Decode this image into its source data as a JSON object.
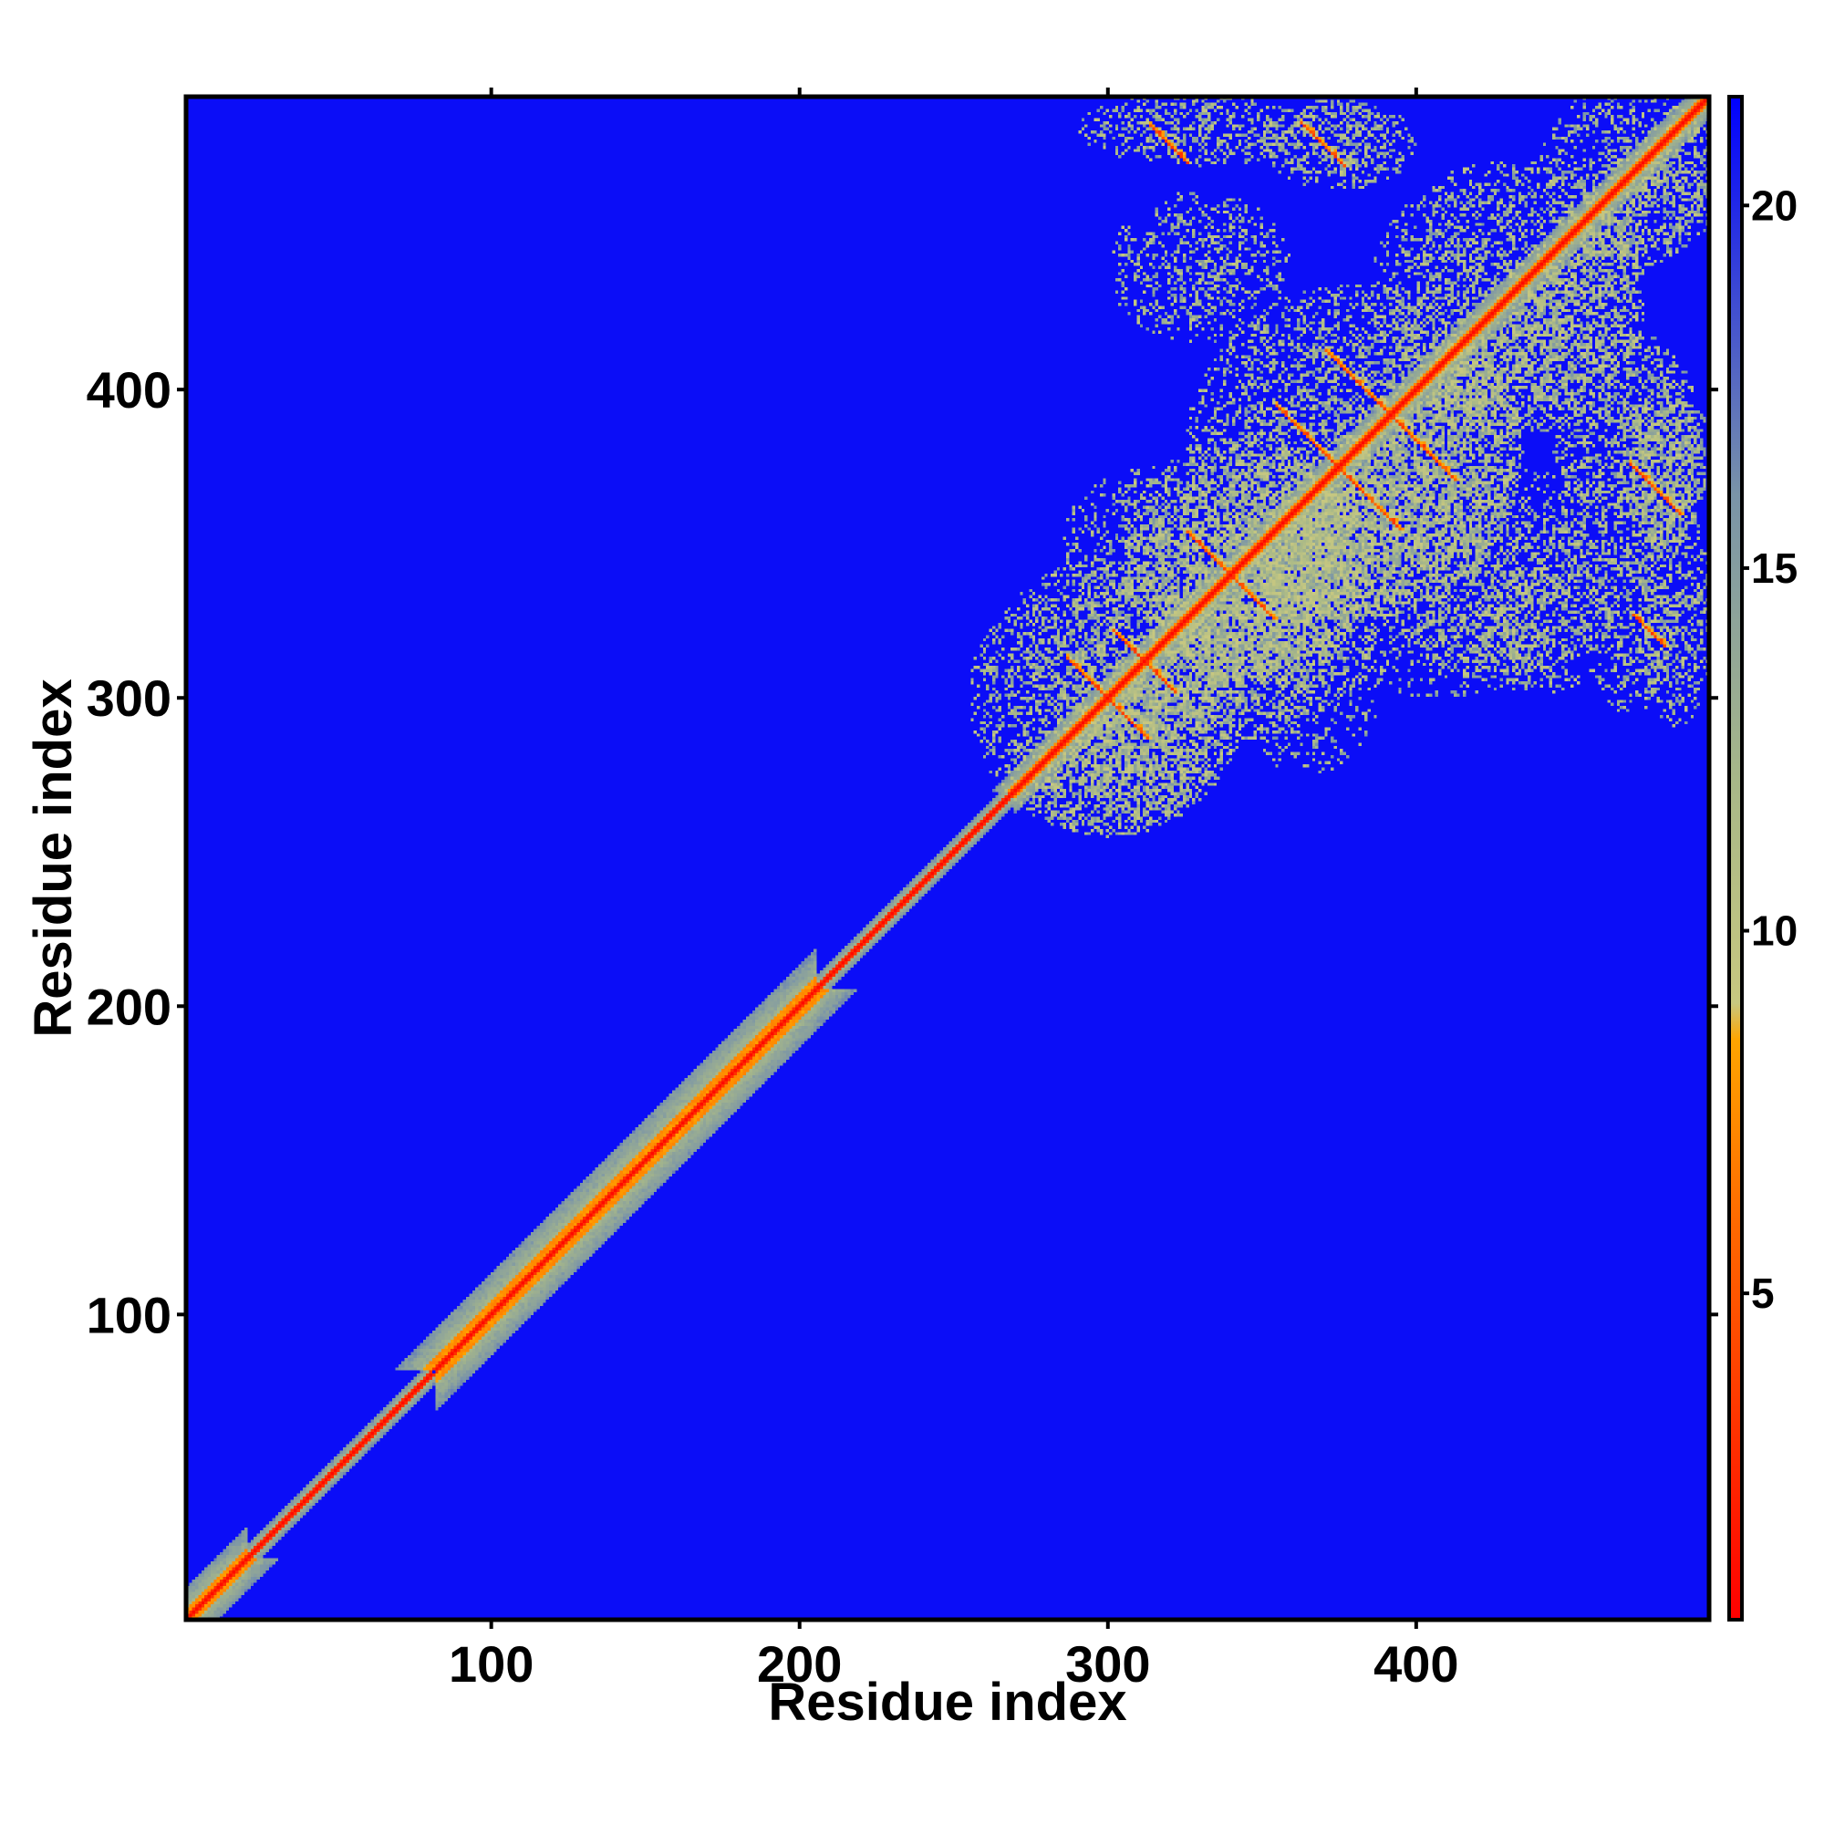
{
  "chart_data": {
    "type": "heatmap",
    "title": "",
    "xlabel": "Residue index",
    "ylabel": "Residue index",
    "xlim": [
      1,
      495
    ],
    "ylim": [
      1,
      495
    ],
    "x_ticks": [
      100,
      200,
      300,
      400
    ],
    "y_ticks": [
      100,
      200,
      300,
      400
    ],
    "colorbar": {
      "range": [
        0.5,
        21.5
      ],
      "ticks": [
        5,
        10,
        15,
        20
      ],
      "stops": [
        {
          "value": 0.5,
          "color": "#ff0000"
        },
        {
          "value": 6.0,
          "color": "#ff6a00"
        },
        {
          "value": 8.5,
          "color": "#ffa500"
        },
        {
          "value": 9.0,
          "color": "#c8c880"
        },
        {
          "value": 12.0,
          "color": "#a8b888"
        },
        {
          "value": 16.0,
          "color": "#7a94a8"
        },
        {
          "value": 21.5,
          "color": "#0000ff"
        }
      ]
    },
    "background_value": 21,
    "diagonal_bands": [
      {
        "start": 1,
        "end": 20,
        "half_width": 10
      },
      {
        "start": 20,
        "end": 80,
        "half_width": 4
      },
      {
        "start": 82,
        "end": 205,
        "half_width": 13
      },
      {
        "start": 205,
        "end": 270,
        "half_width": 4
      },
      {
        "start": 270,
        "end": 495,
        "half_width": 7
      }
    ],
    "contact_clusters": [
      {
        "x": 300,
        "y": 300,
        "rx": 45,
        "ry": 45,
        "density": 0.55
      },
      {
        "x": 345,
        "y": 345,
        "rx": 40,
        "ry": 40,
        "density": 0.5
      },
      {
        "x": 380,
        "y": 380,
        "rx": 55,
        "ry": 55,
        "density": 0.5
      },
      {
        "x": 430,
        "y": 430,
        "rx": 45,
        "ry": 45,
        "density": 0.45
      },
      {
        "x": 470,
        "y": 470,
        "rx": 30,
        "ry": 30,
        "density": 0.4
      },
      {
        "x": 330,
        "y": 485,
        "rx": 40,
        "ry": 12,
        "density": 0.4
      },
      {
        "x": 375,
        "y": 480,
        "rx": 25,
        "ry": 15,
        "density": 0.5
      },
      {
        "x": 315,
        "y": 350,
        "rx": 30,
        "ry": 25,
        "density": 0.35
      },
      {
        "x": 330,
        "y": 440,
        "rx": 30,
        "ry": 25,
        "density": 0.35
      },
      {
        "x": 410,
        "y": 340,
        "rx": 60,
        "ry": 40,
        "density": 0.3
      },
      {
        "x": 470,
        "y": 380,
        "rx": 25,
        "ry": 40,
        "density": 0.45
      },
      {
        "x": 470,
        "y": 320,
        "rx": 15,
        "ry": 25,
        "density": 0.4
      },
      {
        "x": 420,
        "y": 320,
        "rx": 25,
        "ry": 15,
        "density": 0.3
      },
      {
        "x": 365,
        "y": 310,
        "rx": 25,
        "ry": 35,
        "density": 0.3
      }
    ],
    "anti_diagonal_streaks": [
      {
        "cx": 300,
        "cy": 300,
        "half_length": 18
      },
      {
        "cx": 312,
        "cy": 312,
        "half_length": 14
      },
      {
        "cx": 375,
        "cy": 375,
        "half_length": 28
      },
      {
        "cx": 392,
        "cy": 392,
        "half_length": 30
      },
      {
        "cx": 340,
        "cy": 340,
        "half_length": 20
      },
      {
        "cx": 320,
        "cy": 480,
        "half_length": 8
      },
      {
        "cx": 370,
        "cy": 480,
        "half_length": 10
      },
      {
        "cx": 478,
        "cy": 368,
        "half_length": 12
      },
      {
        "cx": 476,
        "cy": 322,
        "half_length": 7
      }
    ]
  }
}
